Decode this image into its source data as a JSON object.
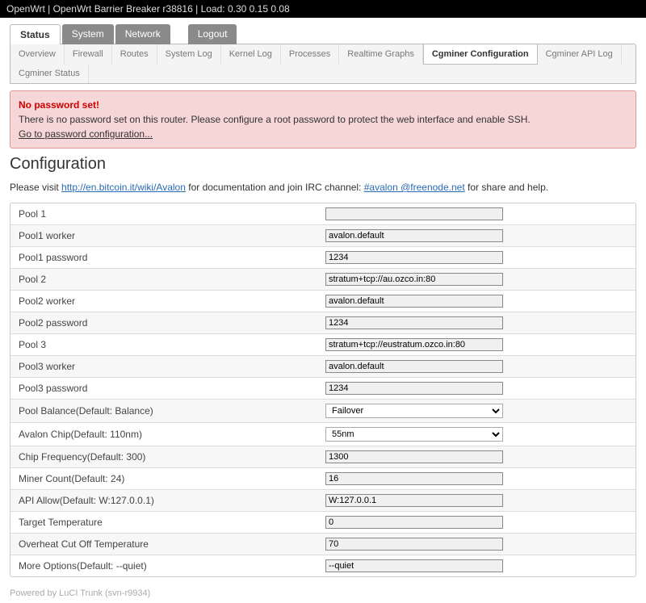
{
  "topbar": {
    "brand": "OpenWrt",
    "version": "OpenWrt Barrier Breaker r38816",
    "load": "Load: 0.30 0.15 0.08"
  },
  "mainTabs": {
    "status": "Status",
    "system": "System",
    "network": "Network",
    "logout": "Logout"
  },
  "subTabs": {
    "overview": "Overview",
    "firewall": "Firewall",
    "routes": "Routes",
    "syslog": "System Log",
    "kernlog": "Kernel Log",
    "processes": "Processes",
    "realtime": "Realtime Graphs",
    "cgconf": "Cgminer Configuration",
    "cgapi": "Cgminer API Log",
    "cgstatus": "Cgminer Status"
  },
  "warning": {
    "title": "No password set!",
    "text": "There is no password set on this router. Please configure a root password to protect the web interface and enable SSH.",
    "link": "Go to password configuration..."
  },
  "page": {
    "title": "Configuration",
    "intro_pre": "Please visit ",
    "intro_link1": "http://en.bitcoin.it/wiki/Avalon",
    "intro_mid": " for documentation and join IRC channel: ",
    "intro_link2": "#avalon @freenode.net",
    "intro_post": " for share and help."
  },
  "fields": {
    "pool1": {
      "label": "Pool 1",
      "value": ""
    },
    "pool1w": {
      "label": "Pool1 worker",
      "value": "avalon.default"
    },
    "pool1p": {
      "label": "Pool1 password",
      "value": "1234"
    },
    "pool2": {
      "label": "Pool 2",
      "value": "stratum+tcp://au.ozco.in:80"
    },
    "pool2w": {
      "label": "Pool2 worker",
      "value": "avalon.default"
    },
    "pool2p": {
      "label": "Pool2 password",
      "value": "1234"
    },
    "pool3": {
      "label": "Pool 3",
      "value": "stratum+tcp://eustratum.ozco.in:80"
    },
    "pool3w": {
      "label": "Pool3 worker",
      "value": "avalon.default"
    },
    "pool3p": {
      "label": "Pool3 password",
      "value": "1234"
    },
    "balance": {
      "label": "Pool Balance(Default: Balance)",
      "value": "Failover"
    },
    "chip": {
      "label": "Avalon Chip(Default: 110nm)",
      "value": "55nm"
    },
    "freq": {
      "label": "Chip Frequency(Default: 300)",
      "value": "1300"
    },
    "miners": {
      "label": "Miner Count(Default: 24)",
      "value": "16"
    },
    "api": {
      "label": "API Allow(Default: W:127.0.0.1)",
      "value": "W:127.0.0.1"
    },
    "target": {
      "label": "Target Temperature",
      "value": "0"
    },
    "overheat": {
      "label": "Overheat Cut Off Temperature",
      "value": "70"
    },
    "more": {
      "label": "More Options(Default: --quiet)",
      "value": "--quiet"
    }
  },
  "footer": "Powered by LuCI Trunk (svn-r9934)"
}
